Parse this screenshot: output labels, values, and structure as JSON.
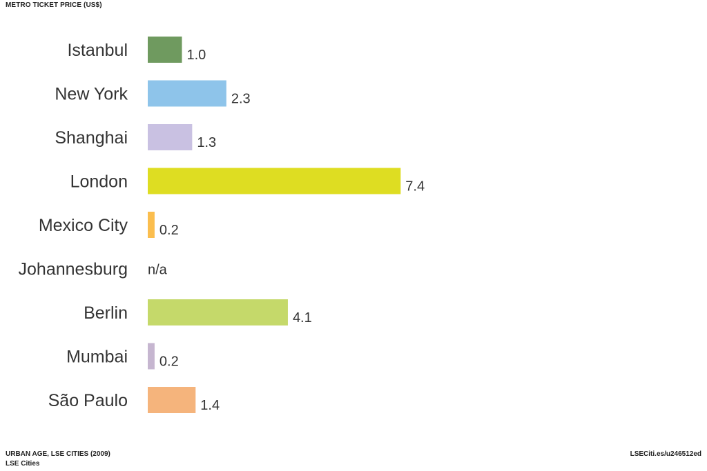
{
  "title": "METRO TICKET PRICE (US$)",
  "chart_data": {
    "type": "bar",
    "orientation": "horizontal",
    "title": "METRO TICKET PRICE (US$)",
    "categories": [
      "Istanbul",
      "New York",
      "Shanghai",
      "London",
      "Mexico City",
      "Johannesburg",
      "Berlin",
      "Mumbai",
      "São Paulo"
    ],
    "values": [
      1.0,
      2.3,
      1.3,
      7.4,
      0.2,
      null,
      4.1,
      0.2,
      1.4
    ],
    "value_labels": [
      "1.0",
      "2.3",
      "1.3",
      "7.4",
      "0.2",
      "n/a",
      "4.1",
      "0.2",
      "1.4"
    ],
    "colors": [
      "#6f9a5f",
      "#8ec4ea",
      "#c9c1e2",
      "#dedd22",
      "#fbbe4e",
      "#cccccc",
      "#c5d96a",
      "#c6b6d0",
      "#f5b47c"
    ],
    "xlim": [
      0,
      8
    ],
    "grid": false,
    "legend": "none"
  },
  "footer": {
    "source": "URBAN AGE, LSE CITIES (2009)",
    "org": "LSE Cities",
    "link": "LSECiti.es/u246512ed"
  }
}
